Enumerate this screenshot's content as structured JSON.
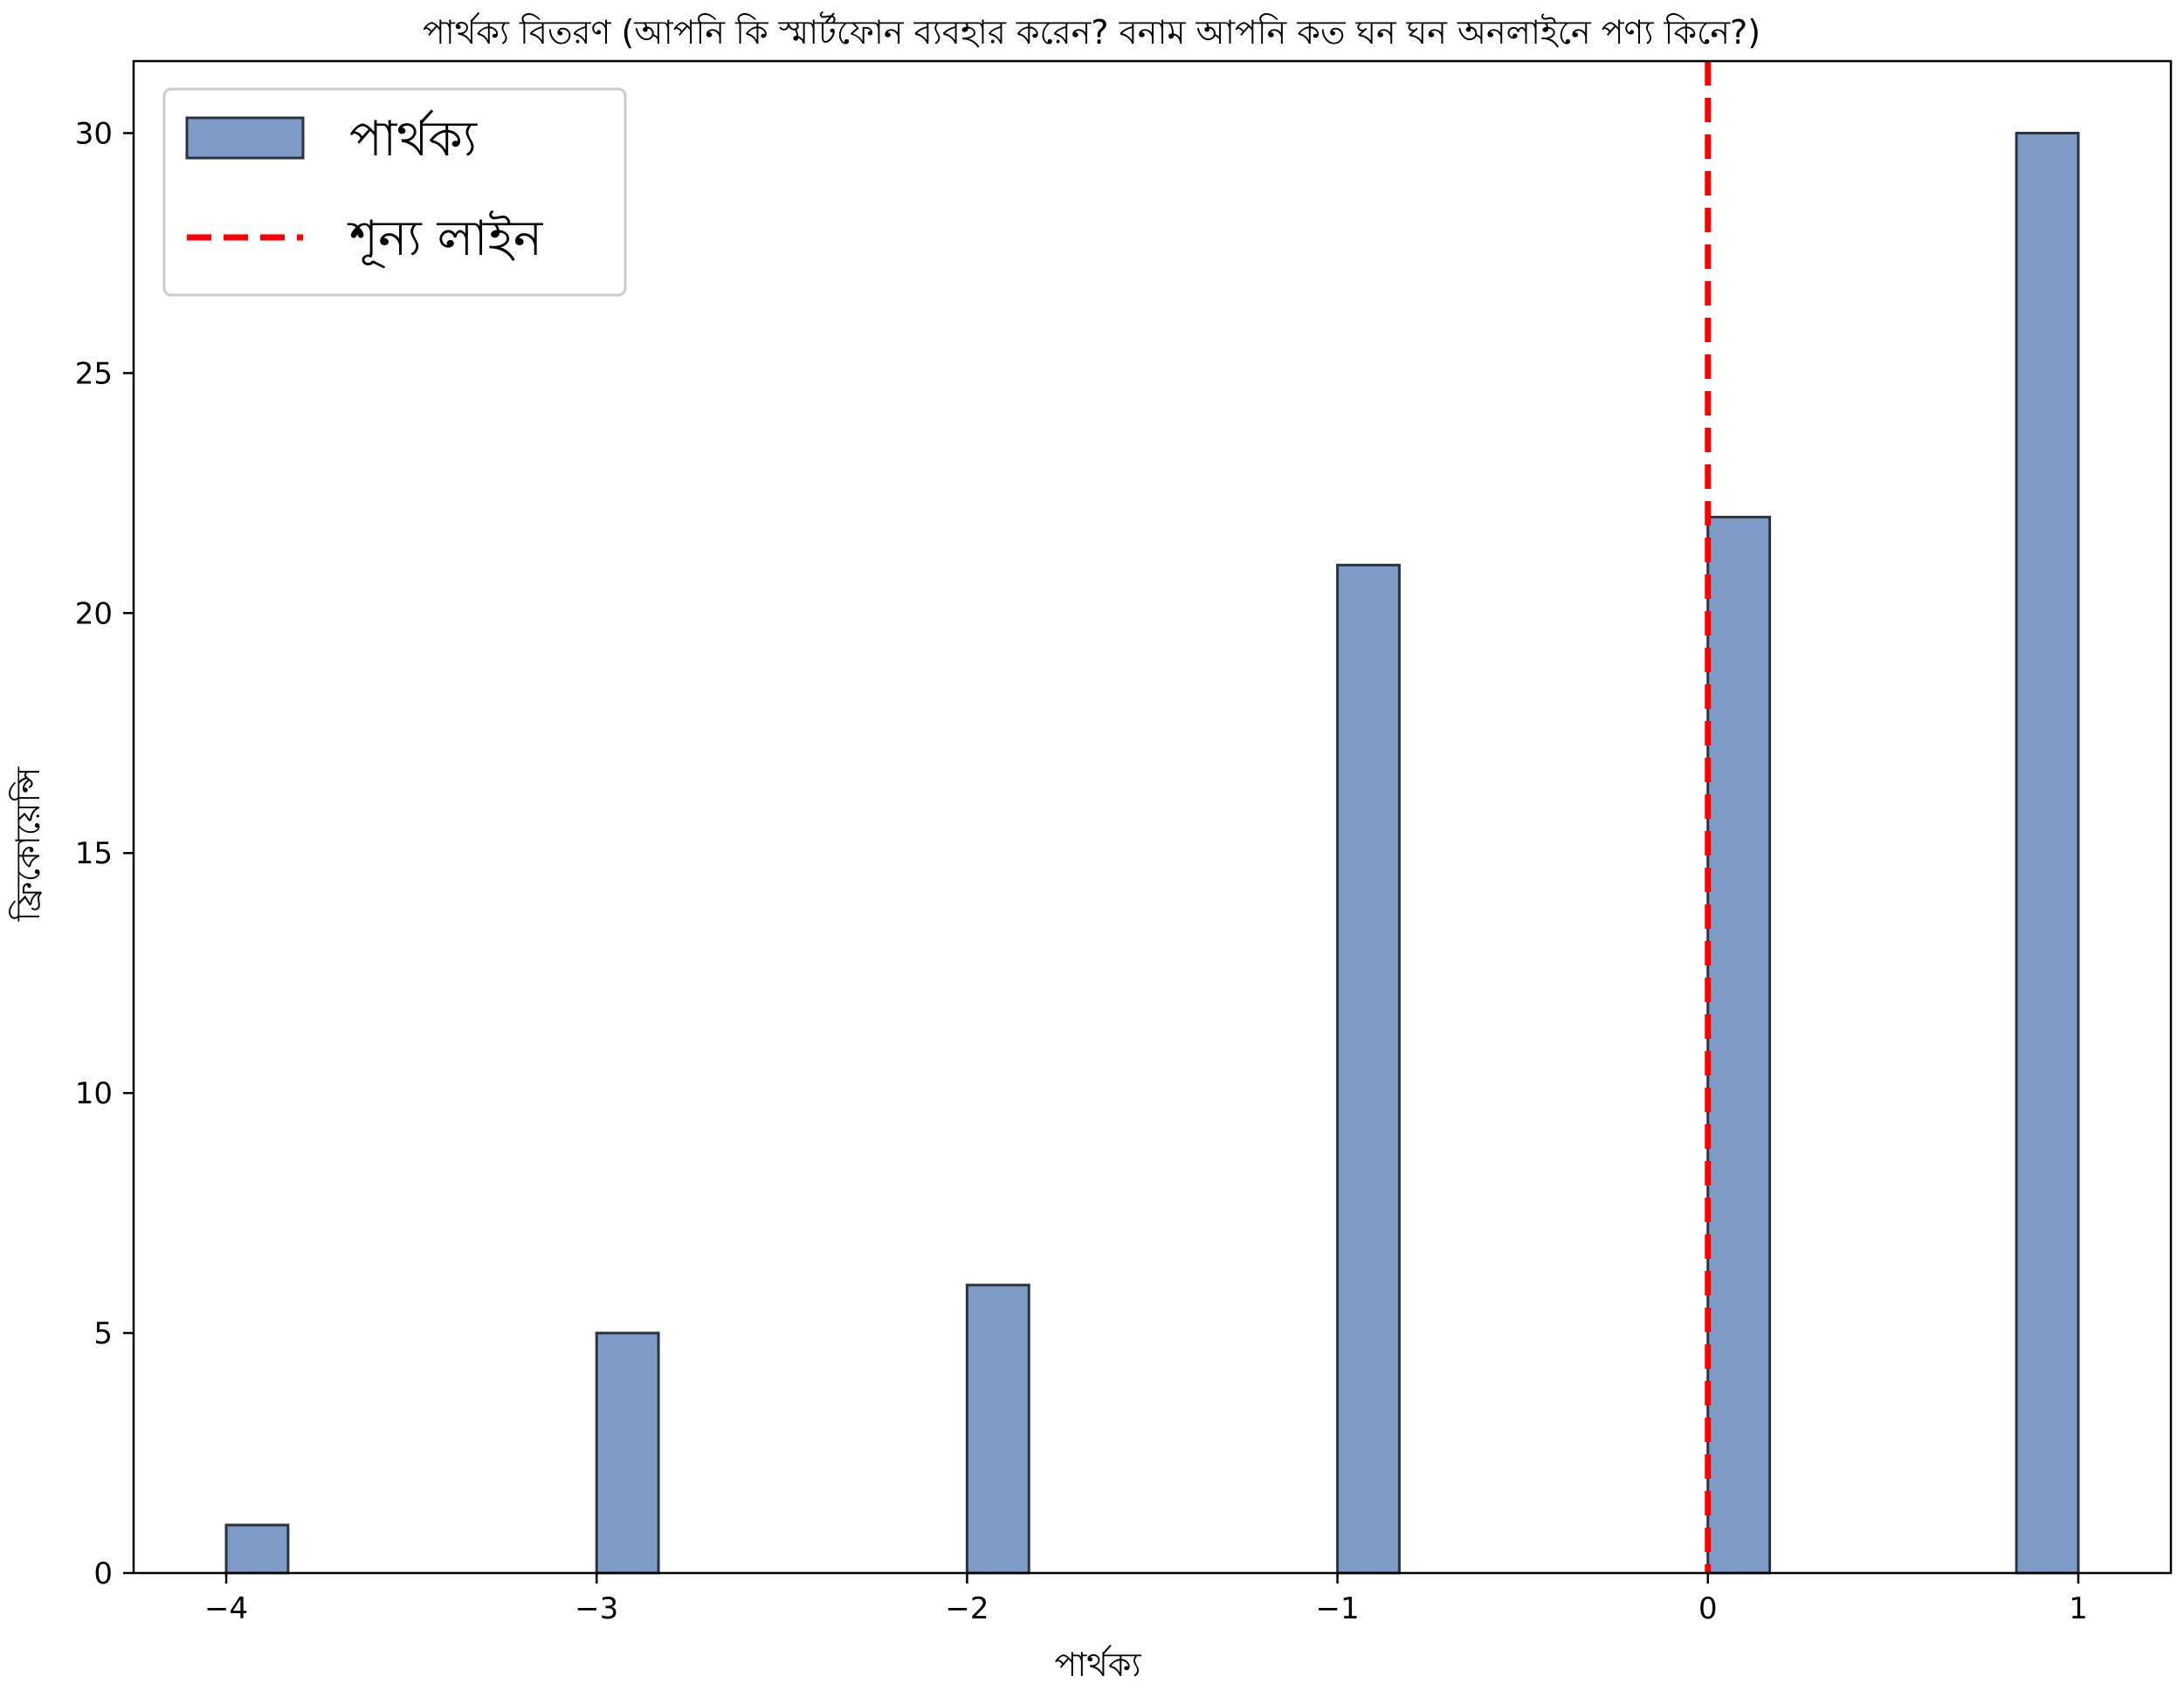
{
  "chart_data": {
    "type": "bar",
    "title": "পার্থক্য বিতরণ (আপনি কি স্মার্টফোন ব্যবহার করেন? বনাম আপনি কত ঘন ঘন অনলাইনে পণ্য কিনে?)",
    "xlabel": "পার্থক্য",
    "ylabel": "ফ্রিকোয়েন্সি",
    "x_ticks": [
      -4,
      -3,
      -2,
      -1,
      0,
      1
    ],
    "x_tick_labels": [
      "−4",
      "−3",
      "−2",
      "−1",
      "0",
      "1"
    ],
    "y_ticks": [
      0,
      5,
      10,
      15,
      20,
      25,
      30
    ],
    "y_tick_labels": [
      "0",
      "5",
      "10",
      "15",
      "20",
      "25",
      "30"
    ],
    "xlim": [
      -4.25,
      1.25
    ],
    "ylim": [
      0,
      31.5
    ],
    "grid": false,
    "series": [
      {
        "name": "পার্থক্য",
        "color": "#7f9cc6",
        "edge_color": "#2b3340",
        "bins": [
          {
            "x_start": -4.0,
            "x_end": -3.833,
            "value": 1
          },
          {
            "x_start": -3.0,
            "x_end": -2.833,
            "value": 5
          },
          {
            "x_start": -2.0,
            "x_end": -1.833,
            "value": 6
          },
          {
            "x_start": -1.0,
            "x_end": -0.833,
            "value": 21
          },
          {
            "x_start": 0.0,
            "x_end": 0.167,
            "value": 22
          },
          {
            "x_start": 0.833,
            "x_end": 1.0,
            "value": 30
          }
        ]
      }
    ],
    "reference_line": {
      "name": "শূন্য লাইন",
      "x": 0,
      "color": "#ff0000",
      "style": "dashed"
    },
    "legend": {
      "placement": "top-left",
      "entries": [
        {
          "label": "পার্থক্য",
          "kind": "patch",
          "color": "#7f9cc6"
        },
        {
          "label": "শূন্য লাইন",
          "kind": "dashed-line",
          "color": "#ff0000"
        }
      ]
    }
  }
}
